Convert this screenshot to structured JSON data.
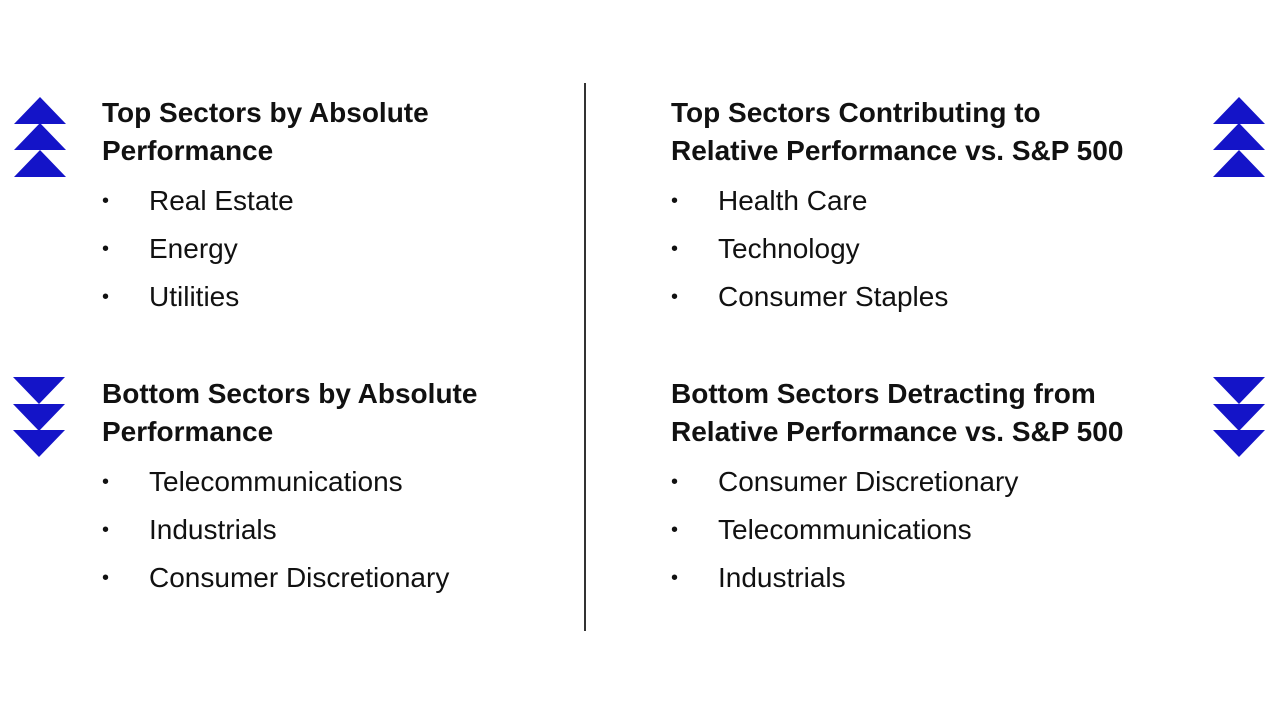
{
  "accent_color": "#1414c8",
  "quadrants": {
    "top_absolute": {
      "heading_line1": "Top Sectors by Absolute",
      "heading_line2": "Performance",
      "items": [
        "Real Estate",
        "Energy",
        "Utilities"
      ],
      "icon": "triple-up-chevron-icon"
    },
    "bottom_absolute": {
      "heading_line1": "Bottom Sectors by Absolute",
      "heading_line2": "Performance",
      "items": [
        "Telecommunications",
        "Industrials",
        "Consumer Discretionary"
      ],
      "icon": "triple-down-chevron-icon"
    },
    "top_relative": {
      "heading_line1": "Top Sectors Contributing to",
      "heading_line2": "Relative Performance vs. S&P 500",
      "items": [
        "Health Care",
        "Technology",
        "Consumer Staples"
      ],
      "icon": "triple-up-chevron-icon"
    },
    "bottom_relative": {
      "heading_line1": "Bottom Sectors Detracting from",
      "heading_line2": "Relative Performance vs. S&P 500",
      "items": [
        "Consumer Discretionary",
        "Telecommunications",
        "Industrials"
      ],
      "icon": "triple-down-chevron-icon"
    }
  },
  "bullet_char": "•"
}
